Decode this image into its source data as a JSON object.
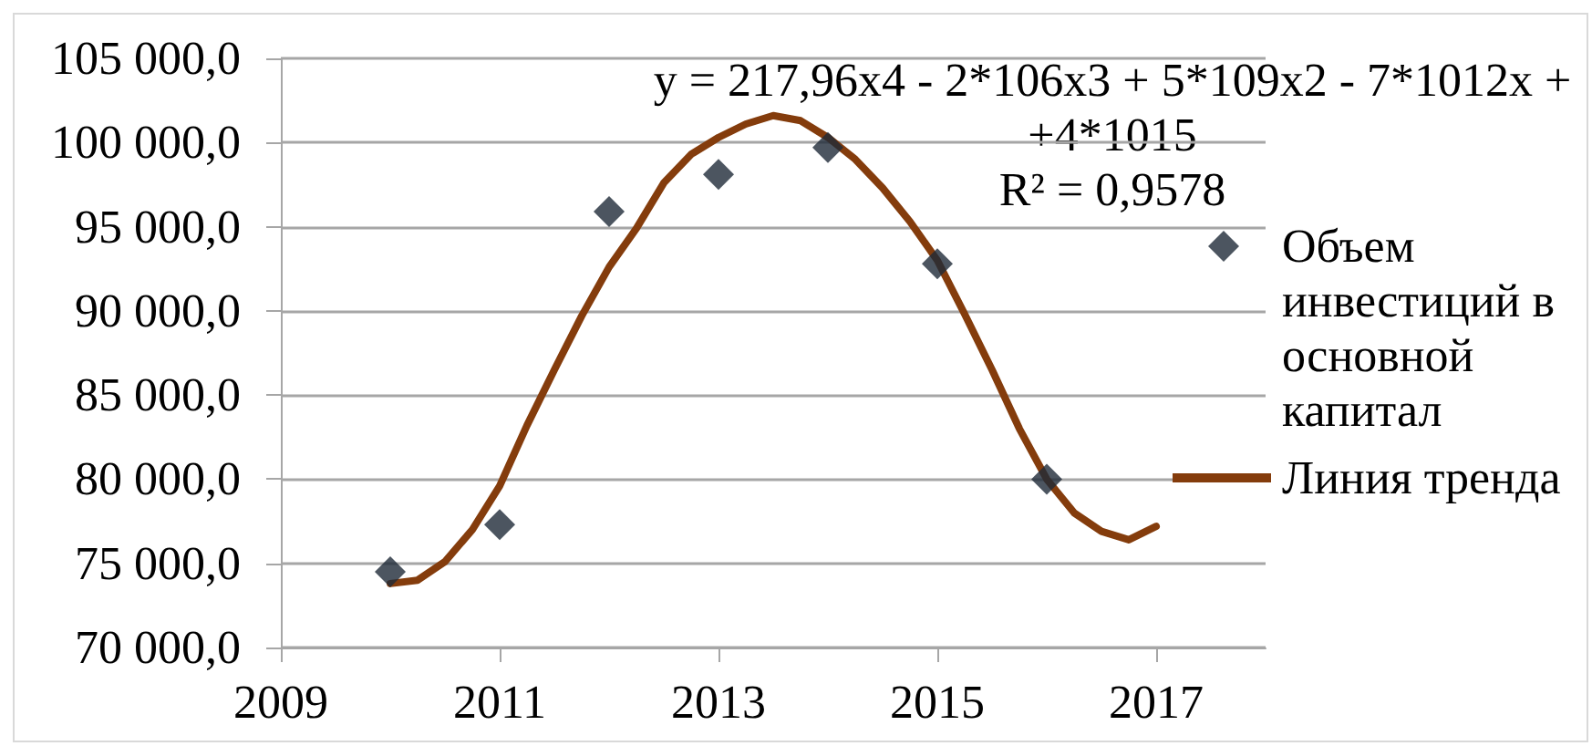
{
  "chart_data": {
    "type": "scatter",
    "annotations": [
      "y = 217,96x4 - 2*106x3 + 5*109x2 - 7*1012x + +4*1015",
      "R² = 0,9578"
    ],
    "xlim": [
      2009,
      2018
    ],
    "xticks": [
      2009,
      2011,
      2013,
      2015,
      2017
    ],
    "ylim": [
      70000,
      105000
    ],
    "yticks": [
      {
        "value": 70000,
        "label": "70 000,0"
      },
      {
        "value": 75000,
        "label": "75 000,0"
      },
      {
        "value": 80000,
        "label": "80 000,0"
      },
      {
        "value": 85000,
        "label": "85 000,0"
      },
      {
        "value": 90000,
        "label": "90 000,0"
      },
      {
        "value": 95000,
        "label": "95 000,0"
      },
      {
        "value": 100000,
        "label": "100 000,0"
      },
      {
        "value": 105000,
        "label": "105 000,0"
      }
    ],
    "grid": "y",
    "legend": "right",
    "series": [
      {
        "name": "Объем инвестиций в основной капитал",
        "type": "scatter",
        "color": "#1f2a38",
        "marker": "diamond",
        "x": [
          2010,
          2011,
          2012,
          2013,
          2014,
          2015,
          2016
        ],
        "values": [
          74500,
          77300,
          95900,
          98100,
          99700,
          92800,
          80000
        ]
      },
      {
        "name": "Линия тренда",
        "type": "line",
        "color": "#843c0c",
        "marker": "none",
        "line_style": "solid",
        "x": [
          2010,
          2010.25,
          2010.5,
          2010.75,
          2011,
          2011.25,
          2011.5,
          2011.75,
          2012,
          2012.25,
          2012.5,
          2012.75,
          2013,
          2013.25,
          2013.5,
          2013.75,
          2014,
          2014.25,
          2014.5,
          2014.75,
          2015,
          2015.25,
          2015.5,
          2015.75,
          2016,
          2016.25,
          2016.5,
          2016.75,
          2017
        ],
        "values": [
          73800,
          74000,
          75100,
          77000,
          79600,
          83200,
          86500,
          89700,
          92600,
          94900,
          97600,
          99300,
          100300,
          101100,
          101600,
          101300,
          100300,
          99000,
          97300,
          95300,
          93000,
          89800,
          86500,
          83000,
          80000,
          78000,
          76900,
          76400,
          77200
        ]
      }
    ]
  }
}
